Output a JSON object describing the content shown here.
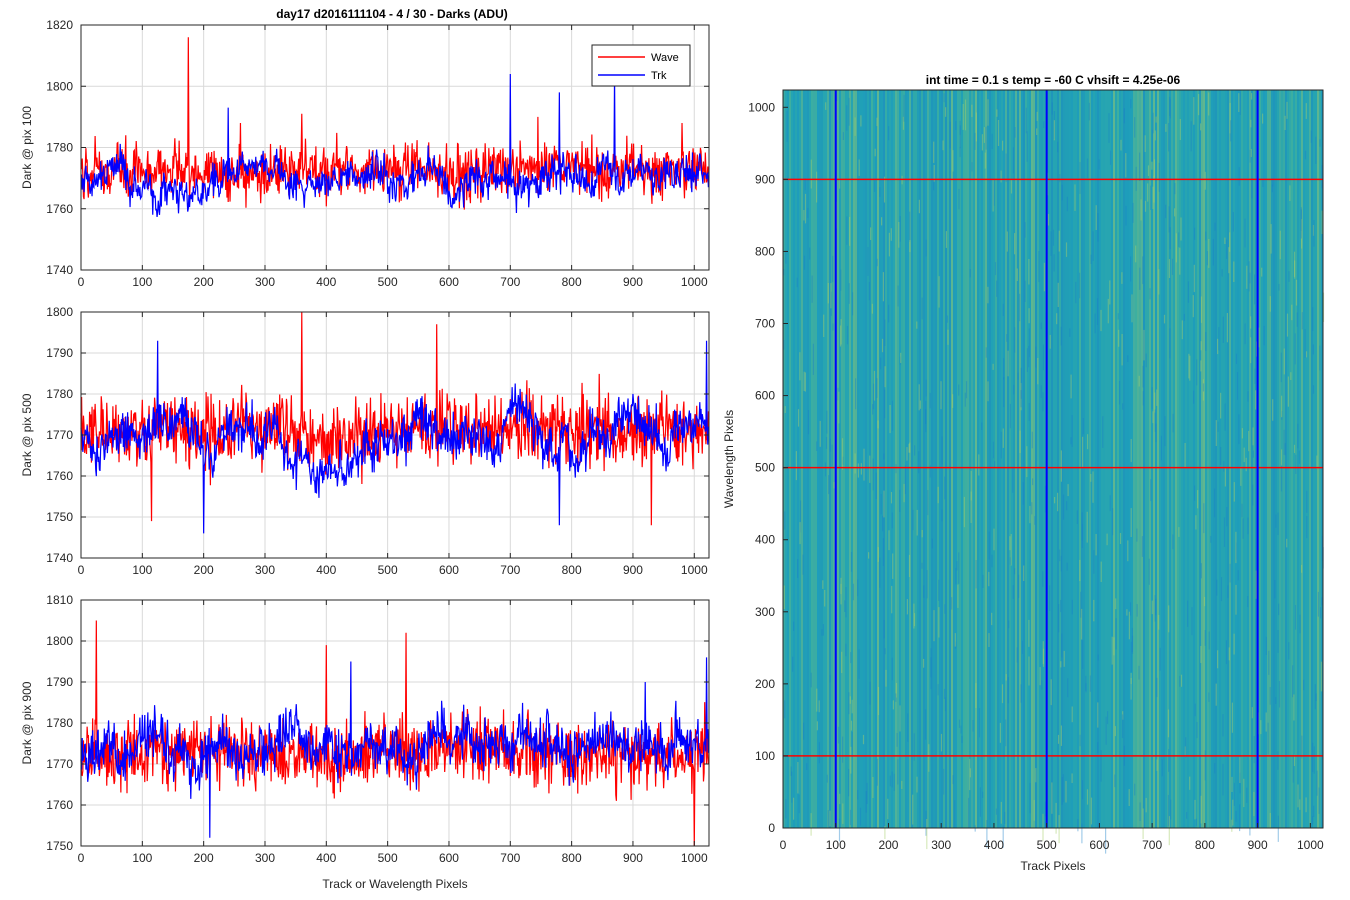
{
  "figure_title": "day17 d2016111104 - 4 / 30 - Darks (ADU)",
  "colors": {
    "wave": "#ff0000",
    "trk": "#0000ff",
    "grid": "#d9d9d9",
    "axis": "#262626",
    "image_base": "#23a3b3"
  },
  "legend": {
    "entries": [
      "Wave",
      "Trk"
    ],
    "location": "top-right"
  },
  "chart_data": [
    {
      "type": "line",
      "ylabel": "Dark @ pix 100",
      "xlabel": "",
      "xlim": [
        0,
        1024
      ],
      "ylim": [
        1740,
        1820
      ],
      "xticks": [
        0,
        100,
        200,
        300,
        400,
        500,
        600,
        700,
        800,
        900,
        1000
      ],
      "yticks": [
        1740,
        1760,
        1780,
        1800,
        1820
      ],
      "grid": true,
      "series": [
        {
          "name": "Wave",
          "n_points": 1024,
          "mean": 1772,
          "noise": 6,
          "wander": 1,
          "spikes": [
            [
              175,
              1816
            ],
            [
              360,
              1791
            ],
            [
              745,
              1790
            ],
            [
              980,
              1788
            ],
            [
              260,
              1788
            ]
          ]
        },
        {
          "name": "Trk",
          "n_points": 1024,
          "mean": 1770,
          "noise": 3.5,
          "wander": 6,
          "spikes": [
            [
              700,
              1804
            ],
            [
              870,
              1804
            ],
            [
              780,
              1798
            ],
            [
              240,
              1793
            ]
          ]
        }
      ]
    },
    {
      "type": "line",
      "ylabel": "Dark @ pix 500",
      "xlabel": "",
      "xlim": [
        0,
        1024
      ],
      "ylim": [
        1740,
        1800
      ],
      "xticks": [
        0,
        100,
        200,
        300,
        400,
        500,
        600,
        700,
        800,
        900,
        1000
      ],
      "yticks": [
        1740,
        1750,
        1760,
        1770,
        1780,
        1790,
        1800
      ],
      "grid": true,
      "series": [
        {
          "name": "Wave",
          "n_points": 1024,
          "mean": 1771,
          "noise": 6,
          "wander": 1,
          "spikes": [
            [
              360,
              1800
            ],
            [
              580,
              1797
            ],
            [
              930,
              1748
            ],
            [
              115,
              1749
            ]
          ]
        },
        {
          "name": "Trk",
          "n_points": 1024,
          "mean": 1770,
          "noise": 3.5,
          "wander": 6,
          "spikes": [
            [
              125,
              1793
            ],
            [
              1020,
              1793
            ],
            [
              200,
              1746
            ],
            [
              780,
              1748
            ]
          ]
        }
      ]
    },
    {
      "type": "line",
      "ylabel": "Dark @ pix 900",
      "xlabel": "Track or Wavelength Pixels",
      "xlim": [
        0,
        1024
      ],
      "ylim": [
        1750,
        1810
      ],
      "xticks": [
        0,
        100,
        200,
        300,
        400,
        500,
        600,
        700,
        800,
        900,
        1000
      ],
      "yticks": [
        1750,
        1760,
        1770,
        1780,
        1790,
        1800,
        1810
      ],
      "grid": true,
      "series": [
        {
          "name": "Wave",
          "n_points": 1024,
          "mean": 1773,
          "noise": 6,
          "wander": 1,
          "spikes": [
            [
              25,
              1805
            ],
            [
              530,
              1802
            ],
            [
              400,
              1799
            ],
            [
              1000,
              1750
            ]
          ]
        },
        {
          "name": "Trk",
          "n_points": 1024,
          "mean": 1773,
          "noise": 4,
          "wander": 4,
          "spikes": [
            [
              1020,
              1796
            ],
            [
              440,
              1795
            ],
            [
              920,
              1790
            ],
            [
              210,
              1752
            ]
          ]
        }
      ]
    },
    {
      "type": "heatmap",
      "title": "int time = 0.1 s   temp = -60 C   vhsift = 4.25e-06",
      "xlabel": "Track Pixels",
      "ylabel": "Wavelength Pixels",
      "xlim": [
        0,
        1024
      ],
      "ylim": [
        0,
        1024
      ],
      "xticks": [
        0,
        100,
        200,
        300,
        400,
        500,
        600,
        700,
        800,
        900,
        1000
      ],
      "yticks": [
        0,
        100,
        200,
        300,
        400,
        500,
        600,
        700,
        800,
        900,
        1000
      ],
      "overlay_vertical_lines": [
        100,
        500,
        900
      ],
      "overlay_horizontal_lines": [
        100,
        500,
        900
      ],
      "vertical_line_color": "#0000ff",
      "horizontal_line_color": "#ff0000"
    }
  ]
}
